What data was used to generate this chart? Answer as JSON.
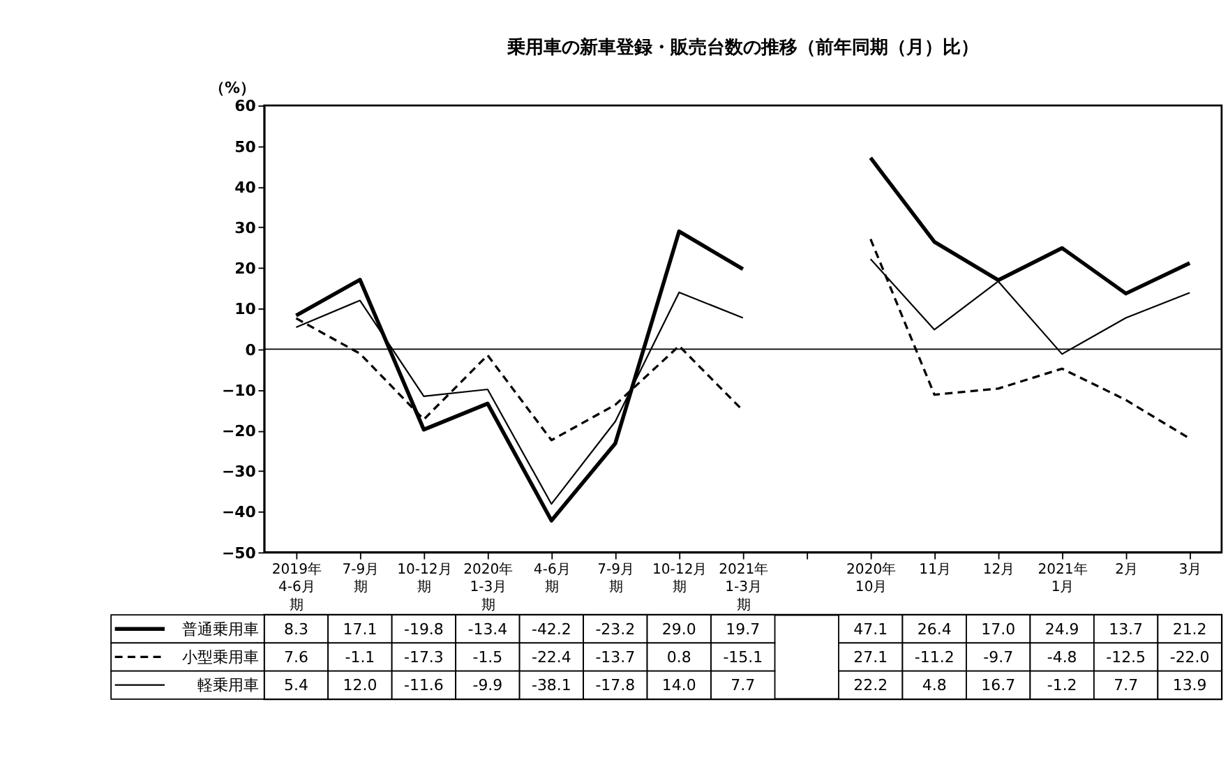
{
  "chart_data": {
    "type": "line",
    "title": "乗用車の新車登録・販売台数の推移（前年同期（月）比）",
    "ylabel": "（%）",
    "categories": [
      "2019年4-6月期",
      "7-9月期",
      "10-12月期",
      "2020年1-3月期",
      "4-6月期",
      "7-9月期",
      "10-12月期",
      "2021年1-3月期",
      null,
      "2020年10月",
      "11月",
      "12月",
      "2021年1月",
      "2月",
      "3月"
    ],
    "series": [
      {
        "name": "普通乗用車",
        "color": "#000000",
        "line_style": "solid",
        "values": [
          8.3,
          17.1,
          -19.8,
          -13.4,
          -42.2,
          -23.2,
          29.0,
          19.7,
          null,
          47.1,
          26.4,
          17.0,
          24.9,
          13.7,
          21.2
        ],
        "value_labels": [
          "8.3",
          "17.1",
          "-19.8",
          "-13.4",
          "-42.2",
          "-23.2",
          "29.0",
          "19.7",
          null,
          "47.1",
          "26.4",
          "17.0",
          "24.9",
          "13.7",
          "21.2"
        ]
      },
      {
        "name": "小型乗用車",
        "color": "#000000",
        "line_style": "dashed",
        "values": [
          7.6,
          -1.1,
          -17.3,
          -1.5,
          -22.4,
          -13.7,
          0.8,
          -15.1,
          null,
          27.1,
          -11.2,
          -9.7,
          -4.8,
          -12.5,
          -22.0
        ],
        "value_labels": [
          "7.6",
          "-1.1",
          "-17.3",
          "-1.5",
          "-22.4",
          "-13.7",
          "0.8",
          "-15.1",
          null,
          "27.1",
          "-11.2",
          "-9.7",
          "-4.8",
          "-12.5",
          "-22.0"
        ]
      },
      {
        "name": "軽乗用車",
        "color": "#000000",
        "line_style": "solid",
        "values": [
          5.4,
          12.0,
          -11.6,
          -9.9,
          -38.1,
          -17.8,
          14.0,
          7.7,
          null,
          22.2,
          4.8,
          16.7,
          -1.2,
          7.7,
          13.9
        ],
        "value_labels": [
          "5.4",
          "12.0",
          "-11.6",
          "-9.9",
          "-38.1",
          "-17.8",
          "14.0",
          "7.7",
          null,
          "22.2",
          "4.8",
          "16.7",
          "-1.2",
          "7.7",
          "13.9"
        ]
      }
    ],
    "ylim": [
      -50,
      60
    ],
    "yticks": [
      -50,
      -40,
      -30,
      -20,
      -10,
      0,
      10,
      20,
      30,
      40,
      50,
      60
    ],
    "ref_lines": [
      {
        "axis": "y",
        "value": 0
      }
    ],
    "grid": false,
    "legend": "bottom left"
  }
}
